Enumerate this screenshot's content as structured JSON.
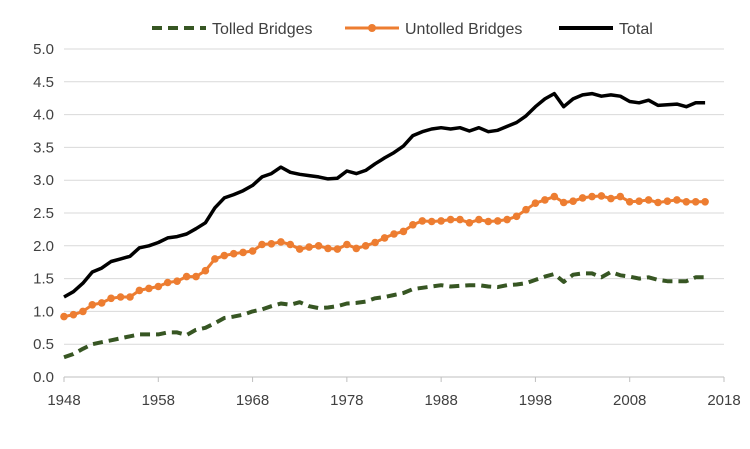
{
  "chart_data": {
    "type": "line",
    "title": "",
    "xlabel": "",
    "ylabel": "",
    "xlim": [
      1948,
      2018
    ],
    "ylim": [
      0,
      5
    ],
    "x_ticks": [
      "1948",
      "1958",
      "1968",
      "1978",
      "1988",
      "1998",
      "2008",
      "2018"
    ],
    "y_ticks": [
      "0.0",
      "0.5",
      "1.0",
      "1.5",
      "2.0",
      "2.5",
      "3.0",
      "3.5",
      "4.0",
      "4.5",
      "5.0"
    ],
    "grid": "horizontal",
    "legend_position": "top",
    "x": [
      1948,
      1949,
      1950,
      1951,
      1952,
      1953,
      1954,
      1955,
      1956,
      1957,
      1958,
      1959,
      1960,
      1961,
      1962,
      1963,
      1964,
      1965,
      1966,
      1967,
      1968,
      1969,
      1970,
      1971,
      1972,
      1973,
      1974,
      1975,
      1976,
      1977,
      1978,
      1979,
      1980,
      1981,
      1982,
      1983,
      1984,
      1985,
      1986,
      1987,
      1988,
      1989,
      1990,
      1991,
      1992,
      1993,
      1994,
      1995,
      1996,
      1997,
      1998,
      1999,
      2000,
      2001,
      2002,
      2003,
      2004,
      2005,
      2006,
      2007,
      2008,
      2009,
      2010,
      2011,
      2012,
      2013,
      2014,
      2015,
      2016
    ],
    "series": [
      {
        "name": "Tolled Bridges",
        "color": "#375623",
        "style": "dashed",
        "values": [
          0.3,
          0.35,
          0.43,
          0.5,
          0.53,
          0.56,
          0.59,
          0.62,
          0.65,
          0.65,
          0.65,
          0.68,
          0.68,
          0.64,
          0.72,
          0.75,
          0.82,
          0.9,
          0.92,
          0.95,
          1.0,
          1.03,
          1.08,
          1.12,
          1.1,
          1.14,
          1.08,
          1.05,
          1.06,
          1.08,
          1.12,
          1.13,
          1.15,
          1.2,
          1.22,
          1.25,
          1.28,
          1.34,
          1.36,
          1.38,
          1.4,
          1.38,
          1.39,
          1.4,
          1.4,
          1.38,
          1.37,
          1.4,
          1.41,
          1.43,
          1.48,
          1.53,
          1.57,
          1.45,
          1.56,
          1.58,
          1.58,
          1.52,
          1.6,
          1.55,
          1.53,
          1.5,
          1.52,
          1.48,
          1.46,
          1.46,
          1.46,
          1.52,
          1.52
        ]
      },
      {
        "name": "Untolled Bridges",
        "color": "#ED7D31",
        "style": "solid-marker",
        "values": [
          0.92,
          0.95,
          1.0,
          1.1,
          1.13,
          1.2,
          1.22,
          1.22,
          1.32,
          1.35,
          1.38,
          1.44,
          1.46,
          1.53,
          1.53,
          1.62,
          1.8,
          1.85,
          1.88,
          1.9,
          1.92,
          2.02,
          2.03,
          2.06,
          2.02,
          1.95,
          1.98,
          2.0,
          1.96,
          1.95,
          2.02,
          1.96,
          2.0,
          2.05,
          2.12,
          2.18,
          2.22,
          2.32,
          2.38,
          2.37,
          2.38,
          2.4,
          2.4,
          2.35,
          2.4,
          2.37,
          2.38,
          2.4,
          2.45,
          2.55,
          2.65,
          2.7,
          2.75,
          2.66,
          2.68,
          2.73,
          2.75,
          2.76,
          2.72,
          2.75,
          2.67,
          2.68,
          2.7,
          2.66,
          2.68,
          2.7,
          2.67,
          2.67,
          2.67
        ]
      },
      {
        "name": "Total",
        "color": "#000000",
        "style": "solid",
        "values": [
          1.22,
          1.3,
          1.43,
          1.6,
          1.66,
          1.76,
          1.8,
          1.84,
          1.97,
          2.0,
          2.05,
          2.12,
          2.14,
          2.18,
          2.26,
          2.35,
          2.58,
          2.73,
          2.78,
          2.84,
          2.92,
          3.05,
          3.1,
          3.2,
          3.12,
          3.09,
          3.07,
          3.05,
          3.02,
          3.03,
          3.14,
          3.1,
          3.15,
          3.25,
          3.34,
          3.42,
          3.52,
          3.68,
          3.74,
          3.78,
          3.8,
          3.78,
          3.8,
          3.75,
          3.8,
          3.74,
          3.76,
          3.82,
          3.88,
          3.98,
          4.12,
          4.24,
          4.32,
          4.12,
          4.24,
          4.3,
          4.32,
          4.28,
          4.3,
          4.28,
          4.2,
          4.18,
          4.22,
          4.14,
          4.15,
          4.16,
          4.12,
          4.18,
          4.18
        ]
      }
    ]
  }
}
